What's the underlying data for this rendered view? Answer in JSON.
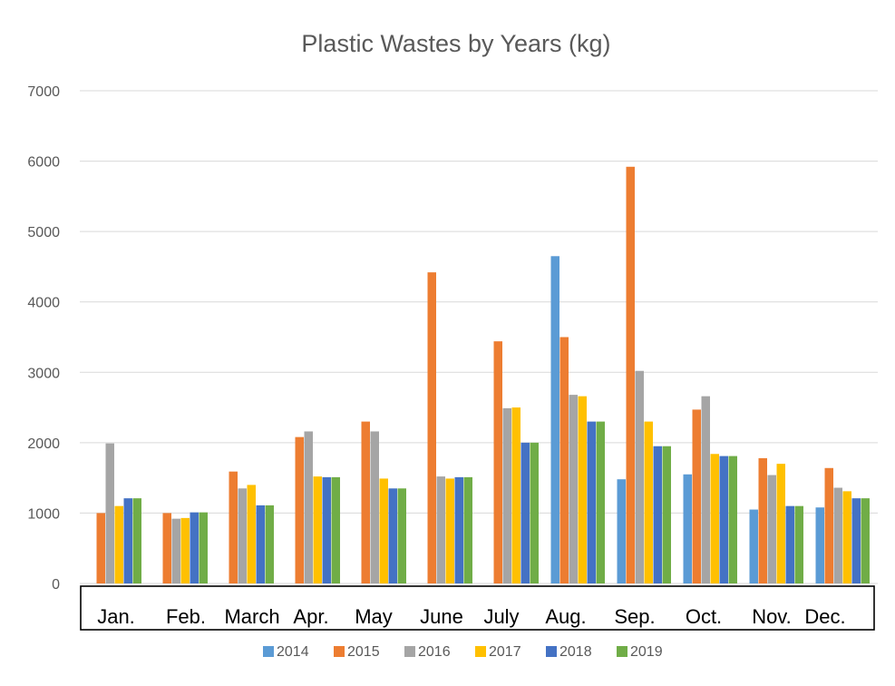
{
  "chart_data": {
    "type": "bar",
    "title": "Plastic Wastes by Years (kg)",
    "xlabel": "",
    "ylabel": "",
    "ylim": [
      0,
      7000
    ],
    "yticks": [
      0,
      1000,
      2000,
      3000,
      4000,
      5000,
      6000,
      7000
    ],
    "grid": true,
    "legend_position": "bottom",
    "categories": [
      "Jan.",
      "Feb.",
      "March",
      "Apr.",
      "May",
      "June",
      "July",
      "Aug.",
      "Sep.",
      "Oct.",
      "Nov.",
      "Dec."
    ],
    "series": [
      {
        "name": "2014",
        "color": "#5B9BD5",
        "values": [
          0,
          0,
          0,
          0,
          0,
          0,
          0,
          4650,
          1480,
          1550,
          1050,
          1080
        ]
      },
      {
        "name": "2015",
        "color": "#ED7D31",
        "values": [
          1000,
          1000,
          1590,
          2080,
          2300,
          4420,
          3440,
          3500,
          5920,
          2470,
          1780,
          1640
        ]
      },
      {
        "name": "2016",
        "color": "#A5A5A5",
        "values": [
          1990,
          920,
          1350,
          2160,
          2160,
          1520,
          2490,
          2680,
          3020,
          2660,
          1540,
          1360
        ]
      },
      {
        "name": "2017",
        "color": "#FFC000",
        "values": [
          1100,
          930,
          1400,
          1520,
          1490,
          1490,
          2500,
          2660,
          2300,
          1840,
          1700,
          1310
        ]
      },
      {
        "name": "2018",
        "color": "#4472C4",
        "values": [
          1210,
          1010,
          1110,
          1510,
          1350,
          1510,
          2000,
          2300,
          1950,
          1810,
          1100,
          1210
        ]
      },
      {
        "name": "2019",
        "color": "#70AD47",
        "values": [
          1210,
          1010,
          1110,
          1510,
          1350,
          1510,
          2000,
          2300,
          1950,
          1810,
          1100,
          1210
        ]
      }
    ]
  }
}
